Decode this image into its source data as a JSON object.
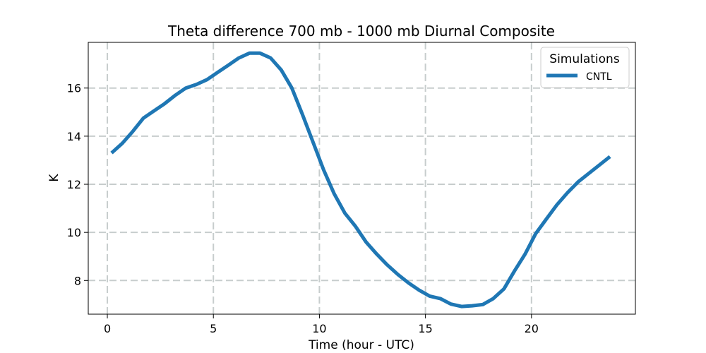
{
  "chart_data": {
    "type": "line",
    "title": "Theta difference 700 mb - 1000 mb Diurnal Composite",
    "xlabel": "Time (hour - UTC)",
    "ylabel": "K",
    "xlim": [
      -0.9,
      24.9
    ],
    "ylim": [
      6.6,
      17.9
    ],
    "xticks": [
      0,
      5,
      10,
      15,
      20
    ],
    "yticks": [
      8,
      10,
      12,
      14,
      16
    ],
    "grid": true,
    "legend": {
      "title": "Simulations",
      "placement": "top-right"
    },
    "series": [
      {
        "name": "CNTL",
        "color": "#1f77b4",
        "x": [
          0.2,
          0.7,
          1.2,
          1.7,
          2.2,
          2.7,
          3.2,
          3.7,
          4.2,
          4.7,
          5.2,
          5.7,
          6.2,
          6.7,
          7.2,
          7.7,
          8.2,
          8.7,
          9.2,
          9.7,
          10.2,
          10.7,
          11.2,
          11.7,
          12.2,
          12.7,
          13.2,
          13.7,
          14.2,
          14.7,
          15.2,
          15.7,
          16.2,
          16.7,
          17.2,
          17.7,
          18.2,
          18.7,
          19.2,
          19.7,
          20.2,
          20.7,
          21.2,
          21.7,
          22.2,
          22.7,
          23.2,
          23.7
        ],
        "values": [
          13.3,
          13.7,
          14.2,
          14.75,
          15.05,
          15.35,
          15.7,
          16.0,
          16.15,
          16.35,
          16.65,
          16.95,
          17.25,
          17.45,
          17.45,
          17.25,
          16.75,
          16.0,
          14.9,
          13.75,
          12.6,
          11.6,
          10.8,
          10.25,
          9.6,
          9.1,
          8.65,
          8.25,
          7.9,
          7.6,
          7.35,
          7.25,
          7.02,
          6.92,
          6.95,
          7.0,
          7.25,
          7.65,
          8.4,
          9.1,
          9.95,
          10.55,
          11.15,
          11.65,
          12.1,
          12.45,
          12.8,
          13.15
        ]
      }
    ]
  }
}
